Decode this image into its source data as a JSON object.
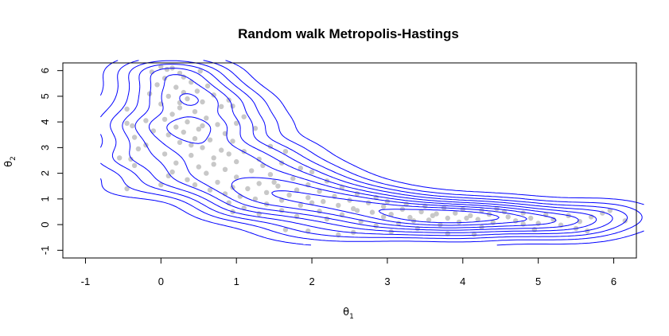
{
  "chart_data": {
    "type": "scatter",
    "title": "Random walk Metropolis-Hastings",
    "xlabel": {
      "main": "θ",
      "sub": "1"
    },
    "ylabel": {
      "main": "θ",
      "sub": "2"
    },
    "xlim": [
      -1.3,
      6.3
    ],
    "ylim": [
      -1.3,
      6.3
    ],
    "x_ticks": [
      -1,
      0,
      1,
      2,
      3,
      4,
      5,
      6
    ],
    "x_tick_labels": [
      "-1",
      "0",
      "1",
      "2",
      "3",
      "4",
      "5",
      "6"
    ],
    "y_ticks": [
      -1,
      0,
      1,
      2,
      3,
      4,
      5,
      6
    ],
    "y_tick_labels": [
      "-1",
      "0",
      "1",
      "2",
      "3",
      "4",
      "5",
      "6"
    ],
    "grid": false,
    "point_color": "#c8c8c8",
    "contour_color": "#0000ff",
    "samples": [
      [
        0.0,
        6.15
      ],
      [
        0.08,
        6.05
      ],
      [
        0.15,
        6.1
      ],
      [
        -0.12,
        5.95
      ],
      [
        0.25,
        5.9
      ],
      [
        0.52,
        5.98
      ],
      [
        0.3,
        5.75
      ],
      [
        0.05,
        5.7
      ],
      [
        0.4,
        5.55
      ],
      [
        -0.05,
        5.45
      ],
      [
        0.62,
        5.4
      ],
      [
        0.2,
        5.35
      ],
      [
        0.48,
        5.2
      ],
      [
        -0.15,
        5.1
      ],
      [
        0.7,
        5.05
      ],
      [
        0.1,
        5.0
      ],
      [
        0.35,
        4.9
      ],
      [
        0.9,
        4.85
      ],
      [
        0.55,
        4.78
      ],
      [
        0.0,
        4.7
      ],
      [
        -0.45,
        4.5
      ],
      [
        0.25,
        4.55
      ],
      [
        0.8,
        4.6
      ],
      [
        0.95,
        4.62
      ],
      [
        0.45,
        4.4
      ],
      [
        0.15,
        4.3
      ],
      [
        1.1,
        4.2
      ],
      [
        0.6,
        4.15
      ],
      [
        -0.2,
        4.05
      ],
      [
        0.05,
        4.1
      ],
      [
        0.35,
        4.0
      ],
      [
        -0.45,
        3.95
      ],
      [
        -0.38,
        3.85
      ],
      [
        0.75,
        3.9
      ],
      [
        1.0,
        3.95
      ],
      [
        0.2,
        3.8
      ],
      [
        0.5,
        3.72
      ],
      [
        -0.1,
        3.65
      ],
      [
        0.3,
        3.6
      ],
      [
        0.85,
        3.55
      ],
      [
        1.25,
        3.75
      ],
      [
        0.1,
        3.5
      ],
      [
        -0.35,
        3.4
      ],
      [
        0.45,
        3.35
      ],
      [
        0.65,
        3.3
      ],
      [
        0.95,
        3.25
      ],
      [
        0.25,
        3.2
      ],
      [
        -0.2,
        3.1
      ],
      [
        1.45,
        3.05
      ],
      [
        0.55,
        3.0
      ],
      [
        -0.3,
        2.95
      ],
      [
        0.8,
        2.9
      ],
      [
        1.1,
        2.85
      ],
      [
        1.65,
        2.85
      ],
      [
        0.05,
        2.75
      ],
      [
        0.4,
        2.7
      ],
      [
        -0.55,
        2.6
      ],
      [
        -0.4,
        2.55
      ],
      [
        0.7,
        2.6
      ],
      [
        1.3,
        2.55
      ],
      [
        1.0,
        2.45
      ],
      [
        0.2,
        2.4
      ],
      [
        1.6,
        2.4
      ],
      [
        -0.35,
        2.3
      ],
      [
        0.5,
        2.25
      ],
      [
        1.85,
        2.2
      ],
      [
        0.85,
        2.15
      ],
      [
        1.2,
        2.1
      ],
      [
        2.0,
        2.05
      ],
      [
        0.6,
        2.0
      ],
      [
        1.45,
        1.95
      ],
      [
        0.1,
        1.9
      ],
      [
        1.0,
        1.85
      ],
      [
        1.75,
        1.8
      ],
      [
        0.35,
        1.75
      ],
      [
        2.2,
        1.7
      ],
      [
        0.75,
        1.65
      ],
      [
        1.3,
        1.6
      ],
      [
        1.95,
        1.55
      ],
      [
        0.0,
        1.55
      ],
      [
        1.55,
        1.5
      ],
      [
        0.95,
        1.45
      ],
      [
        2.4,
        1.45
      ],
      [
        -0.45,
        1.4
      ],
      [
        1.15,
        1.4
      ],
      [
        1.8,
        1.35
      ],
      [
        0.65,
        1.35
      ],
      [
        2.1,
        1.3
      ],
      [
        1.4,
        1.25
      ],
      [
        2.6,
        1.2
      ],
      [
        0.85,
        1.2
      ],
      [
        1.7,
        1.15
      ],
      [
        2.3,
        1.1
      ],
      [
        1.05,
        1.1
      ],
      [
        1.95,
        1.05
      ],
      [
        2.85,
        1.05
      ],
      [
        1.25,
        1.0
      ],
      [
        2.5,
        0.95
      ],
      [
        1.6,
        0.95
      ],
      [
        3.0,
        0.9
      ],
      [
        2.15,
        0.9
      ],
      [
        0.9,
        0.85
      ],
      [
        2.75,
        0.85
      ],
      [
        1.4,
        0.8
      ],
      [
        3.25,
        0.8
      ],
      [
        1.85,
        0.75
      ],
      [
        2.35,
        0.75
      ],
      [
        3.5,
        0.72
      ],
      [
        2.95,
        0.7
      ],
      [
        1.1,
        0.65
      ],
      [
        3.75,
        0.65
      ],
      [
        2.55,
        0.62
      ],
      [
        4.0,
        0.6
      ],
      [
        3.2,
        0.6
      ],
      [
        1.6,
        0.55
      ],
      [
        4.25,
        0.55
      ],
      [
        2.1,
        0.52
      ],
      [
        3.45,
        0.5
      ],
      [
        4.55,
        0.5
      ],
      [
        0.95,
        0.5
      ],
      [
        2.8,
        0.48
      ],
      [
        3.9,
        0.45
      ],
      [
        4.8,
        0.45
      ],
      [
        1.3,
        0.42
      ],
      [
        3.05,
        0.4
      ],
      [
        4.35,
        0.4
      ],
      [
        2.4,
        0.38
      ],
      [
        5.1,
        0.38
      ],
      [
        3.6,
        0.35
      ],
      [
        4.1,
        0.35
      ],
      [
        5.4,
        0.35
      ],
      [
        1.8,
        0.32
      ],
      [
        2.95,
        0.3
      ],
      [
        4.6,
        0.3
      ],
      [
        3.3,
        0.28
      ],
      [
        5.7,
        0.3
      ],
      [
        3.8,
        0.25
      ],
      [
        4.9,
        0.25
      ],
      [
        2.2,
        0.22
      ],
      [
        4.2,
        0.2
      ],
      [
        5.2,
        0.2
      ],
      [
        3.55,
        0.18
      ],
      [
        6.15,
        0.15
      ],
      [
        4.7,
        0.15
      ],
      [
        2.65,
        0.12
      ],
      [
        5.55,
        0.12
      ],
      [
        3.95,
        0.1
      ],
      [
        4.4,
        0.08
      ],
      [
        5.0,
        0.05
      ],
      [
        3.15,
        0.05
      ],
      [
        5.85,
        0.45
      ],
      [
        5.95,
        0.55
      ],
      [
        4.8,
        0.02
      ],
      [
        3.7,
        0.0
      ],
      [
        5.3,
        -0.02
      ],
      [
        2.85,
        -0.05
      ],
      [
        4.25,
        -0.1
      ],
      [
        5.5,
        -0.15
      ],
      [
        3.4,
        -0.15
      ],
      [
        4.95,
        -0.2
      ],
      [
        1.65,
        -0.2
      ],
      [
        2.55,
        -0.3
      ],
      [
        3.8,
        -0.35
      ],
      [
        4.15,
        -0.38
      ],
      [
        2.35,
        -0.4
      ],
      [
        1.95,
        -0.25
      ],
      [
        5.65,
        -0.25
      ],
      [
        3.05,
        -0.28
      ],
      [
        0.55,
        3.85
      ],
      [
        0.25,
        4.75
      ],
      [
        0.4,
        3.1
      ],
      [
        0.7,
        2.35
      ],
      [
        0.15,
        2.05
      ],
      [
        1.35,
        2.3
      ],
      [
        0.45,
        1.55
      ],
      [
        2.6,
        0.55
      ],
      [
        3.35,
        0.15
      ],
      [
        4.45,
        0.62
      ],
      [
        3.65,
        0.42
      ],
      [
        4.05,
        0.25
      ],
      [
        2.0,
        0.85
      ],
      [
        1.5,
        1.65
      ],
      [
        0.9,
        2.75
      ],
      [
        0.3,
        5.15
      ]
    ]
  }
}
